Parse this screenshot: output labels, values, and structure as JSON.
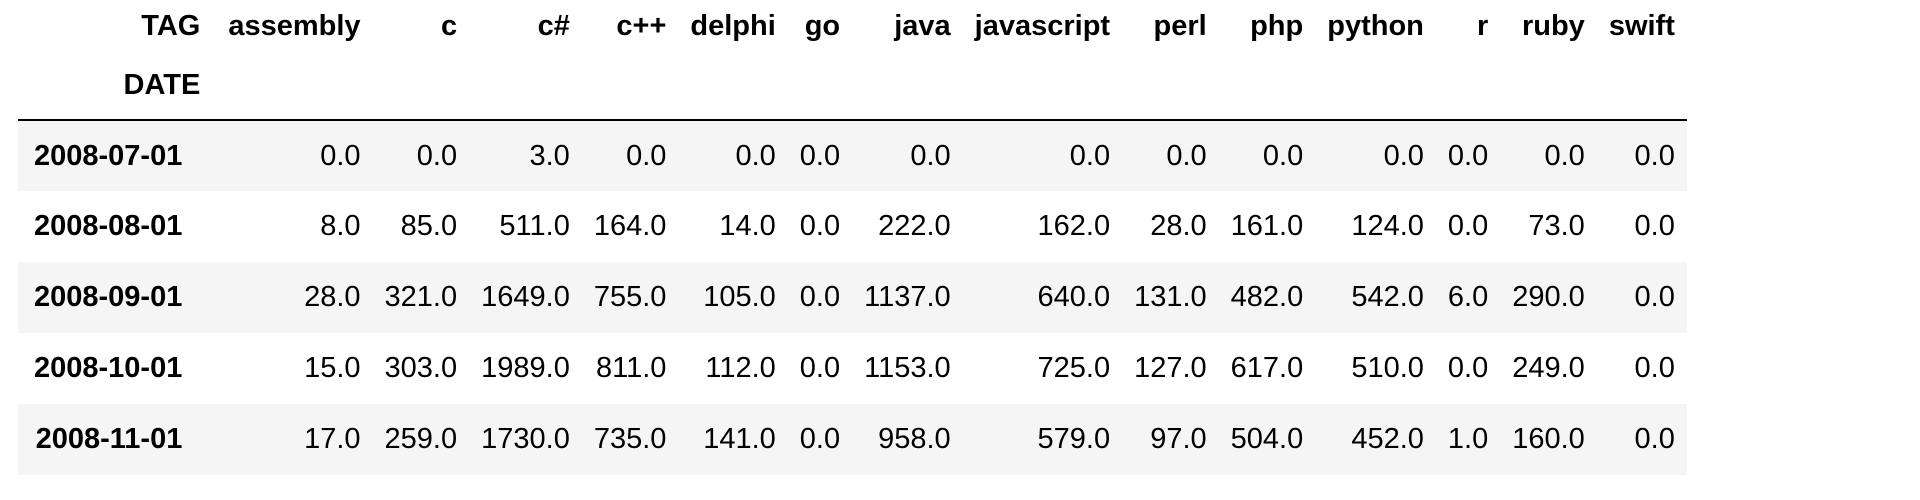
{
  "table": {
    "columns_name": "TAG",
    "index_name": "DATE",
    "columns": [
      "assembly",
      "c",
      "c#",
      "c++",
      "delphi",
      "go",
      "java",
      "javascript",
      "perl",
      "php",
      "python",
      "r",
      "ruby",
      "swift"
    ],
    "rows": [
      {
        "date": "2008-07-01",
        "values": [
          "0.0",
          "0.0",
          "3.0",
          "0.0",
          "0.0",
          "0.0",
          "0.0",
          "0.0",
          "0.0",
          "0.0",
          "0.0",
          "0.0",
          "0.0",
          "0.0"
        ]
      },
      {
        "date": "2008-08-01",
        "values": [
          "8.0",
          "85.0",
          "511.0",
          "164.0",
          "14.0",
          "0.0",
          "222.0",
          "162.0",
          "28.0",
          "161.0",
          "124.0",
          "0.0",
          "73.0",
          "0.0"
        ]
      },
      {
        "date": "2008-09-01",
        "values": [
          "28.0",
          "321.0",
          "1649.0",
          "755.0",
          "105.0",
          "0.0",
          "1137.0",
          "640.0",
          "131.0",
          "482.0",
          "542.0",
          "6.0",
          "290.0",
          "0.0"
        ]
      },
      {
        "date": "2008-10-01",
        "values": [
          "15.0",
          "303.0",
          "1989.0",
          "811.0",
          "112.0",
          "0.0",
          "1153.0",
          "725.0",
          "127.0",
          "617.0",
          "510.0",
          "0.0",
          "249.0",
          "0.0"
        ]
      },
      {
        "date": "2008-11-01",
        "values": [
          "17.0",
          "259.0",
          "1730.0",
          "735.0",
          "141.0",
          "0.0",
          "958.0",
          "579.0",
          "97.0",
          "504.0",
          "452.0",
          "1.0",
          "160.0",
          "0.0"
        ]
      }
    ]
  }
}
